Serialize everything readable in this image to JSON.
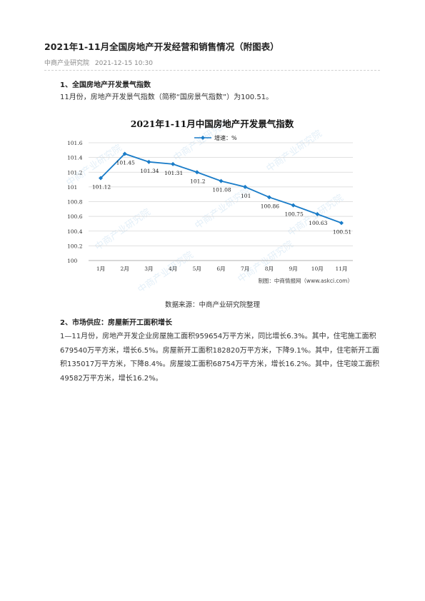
{
  "article": {
    "title": "2021年1-11月全国房地产开发经营和销售情况（附图表）",
    "source": "中商产业研究院",
    "datetime": "2021-12-15 10:30"
  },
  "section1": {
    "heading": "1、全国房地产开发景气指数",
    "paragraph": "11月份，房地产开发景气指数（简称“国房景气指数”）为100.51。"
  },
  "chart_data": {
    "type": "line",
    "title": "2021年1-11月中国房地产开发景气指数",
    "categories": [
      "1月",
      "2月",
      "3月",
      "4月",
      "5月",
      "6月",
      "7月",
      "8月",
      "9月",
      "10月",
      "11月"
    ],
    "series": [
      {
        "name": "增速：%",
        "values": [
          101.12,
          101.45,
          101.34,
          101.31,
          101.2,
          101.08,
          101,
          100.86,
          100.75,
          100.63,
          100.51
        ]
      }
    ],
    "data_labels": [
      "101.12",
      "101.45",
      "101.34",
      "101.31",
      "101.2",
      "101.08",
      "101",
      "100.86",
      "100.75",
      "100.63",
      "100.51"
    ],
    "y_ticks": [
      "100",
      "100.2",
      "100.4",
      "100.6",
      "100.8",
      "101",
      "101.2",
      "101.4",
      "101.6"
    ],
    "ylim": [
      100,
      101.6
    ],
    "legend": "top",
    "grid": "horizontal",
    "credit": "制图：中商情报网（www.askci.com）",
    "line_color": "#1a7cc8",
    "watermark": "中商产业研究院"
  },
  "chart_caption": "数据来源：中商产业研究院整理",
  "section2": {
    "heading": "2、市场供应：房屋新开工面积增长",
    "paragraph": "1—11月份，房地产开发企业房屋施工面积959654万平方米，同比增长6.3%。其中，住宅施工面积679540万平方米，增长6.5%。房屋新开工面积182820万平方米，下降9.1%。其中，住宅新开工面积135017万平方米，下降8.4%。房屋竣工面积68754万平方米，增长16.2%。其中，住宅竣工面积49582万平方米，增长16.2%。"
  }
}
